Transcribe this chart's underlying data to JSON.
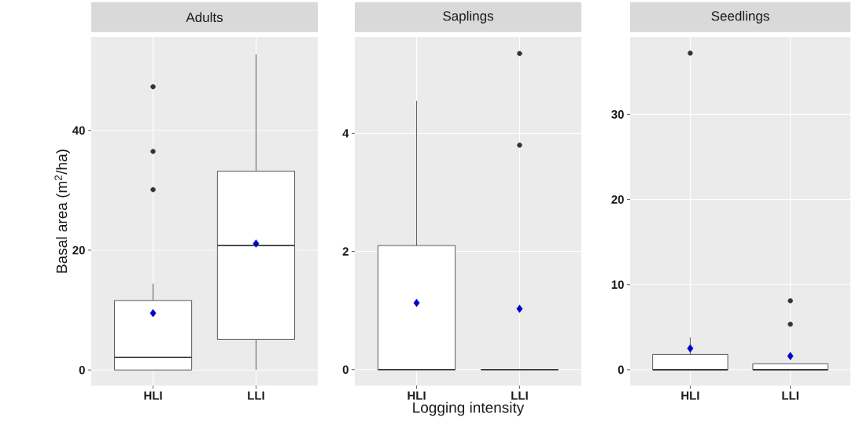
{
  "chart_data": [
    {
      "type": "box",
      "title": "Adults",
      "ylabel": "Basal area (m$^{2}$/ha)",
      "categories": [
        "HLI",
        "LLI"
      ],
      "color": "#333333",
      "boxes": [
        {
          "low": 0,
          "q1": 0,
          "median": 2.1,
          "q3": 11.6,
          "high": 14.4,
          "outliers": [
            47.3,
            36.5,
            30.1
          ]
        },
        {
          "low": 0,
          "q1": 5.1,
          "median": 20.8,
          "q3": 33.2,
          "high": 52.7
        }
      ],
      "series": [
        {
          "type": "scatter",
          "values": [
            9.5,
            21.1
          ],
          "color": "#0000cc",
          "marker": "diamond"
        }
      ],
      "ylim": [
        -2.6,
        55.6
      ],
      "yticks": [
        0,
        20,
        40
      ],
      "grid": true
    },
    {
      "type": "box",
      "title": "Saplings",
      "xlabel": "Logging intensity",
      "categories": [
        "HLI",
        "LLI"
      ],
      "color": "#333333",
      "boxes": [
        {
          "low": 0,
          "q1": 0,
          "median": 0,
          "q3": 2.1,
          "high": 4.55
        },
        {
          "low": 0,
          "q1": 0,
          "median": 0,
          "q3": 0,
          "high": 0,
          "outliers": [
            5.35,
            3.8
          ]
        }
      ],
      "series": [
        {
          "type": "scatter",
          "values": [
            1.13,
            1.03
          ],
          "color": "#0000cc",
          "marker": "diamond"
        }
      ],
      "ylim": [
        -0.27,
        5.63
      ],
      "yticks": [
        0,
        2,
        4
      ],
      "grid": true
    },
    {
      "type": "box",
      "title": "Seedlings",
      "categories": [
        "HLI",
        "LLI"
      ],
      "color": "#333333",
      "boxes": [
        {
          "low": 0,
          "q1": 0,
          "median": 0,
          "q3": 1.8,
          "high": 3.8,
          "outliers": [
            37.2
          ]
        },
        {
          "low": 0,
          "q1": 0,
          "median": 0,
          "q3": 0.7,
          "high": 0.7,
          "outliers": [
            8.1,
            5.35
          ]
        }
      ],
      "series": [
        {
          "type": "scatter",
          "values": [
            2.5,
            1.6
          ],
          "color": "#0000cc",
          "marker": "diamond"
        }
      ],
      "ylim": [
        -1.86,
        39.1
      ],
      "yticks": [
        0,
        10,
        20,
        30
      ],
      "grid": true
    }
  ]
}
